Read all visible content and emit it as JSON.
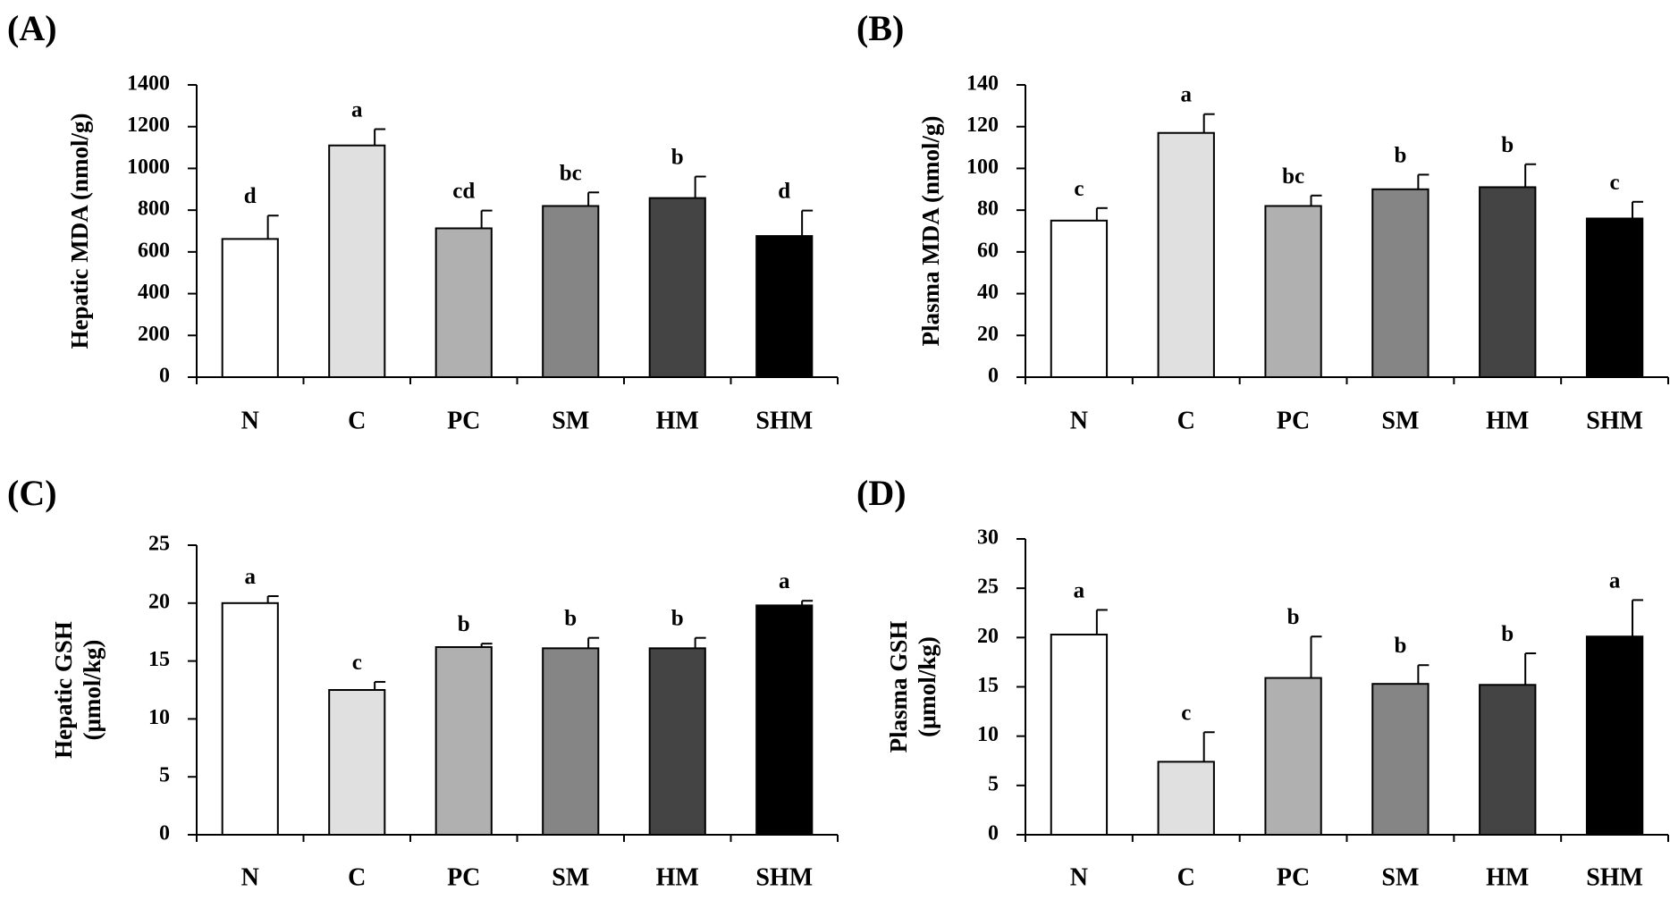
{
  "chart_data": [
    {
      "type": "bar",
      "panel": "(A)",
      "ylabel": "Hepatic MDA (nmol/g)",
      "ylabel_lines": [
        "Hepatic MDA (nmol/g)"
      ],
      "ylim": [
        0,
        1400
      ],
      "yticks": [
        "0",
        "200",
        "400",
        "600",
        "800",
        "1000",
        "1200",
        "1400"
      ],
      "categories": [
        "N",
        "C",
        "PC",
        "SM",
        "HM",
        "SHM"
      ],
      "values": [
        662,
        1110,
        713,
        820,
        858,
        676
      ],
      "errors": [
        112,
        78,
        85,
        65,
        103,
        122
      ],
      "significance": [
        "d",
        "a",
        "cd",
        "bc",
        "b",
        "d"
      ]
    },
    {
      "type": "bar",
      "panel": "(B)",
      "ylabel": "Plasma MDA (nmol/g)",
      "ylabel_lines": [
        "Plasma MDA (nmol/g)"
      ],
      "ylim": [
        0,
        140
      ],
      "yticks": [
        "0",
        "20",
        "40",
        "60",
        "80",
        "100",
        "120",
        "140"
      ],
      "categories": [
        "N",
        "C",
        "PC",
        "SM",
        "HM",
        "SHM"
      ],
      "values": [
        75,
        117,
        82,
        90,
        91,
        76
      ],
      "errors": [
        6,
        9,
        5,
        7,
        11,
        8
      ],
      "significance": [
        "c",
        "a",
        "bc",
        "b",
        "b",
        "c"
      ]
    },
    {
      "type": "bar",
      "panel": "(C)",
      "ylabel": "Hepatic GSH (μmol/kg)",
      "ylabel_lines": [
        "Hepatic GSH",
        "(μmol/kg)"
      ],
      "ylim": [
        0,
        25
      ],
      "yticks": [
        "0",
        "5",
        "10",
        "15",
        "20",
        "25"
      ],
      "categories": [
        "N",
        "C",
        "PC",
        "SM",
        "HM",
        "SHM"
      ],
      "values": [
        20.0,
        12.5,
        16.2,
        16.1,
        16.1,
        19.8
      ],
      "errors": [
        0.6,
        0.7,
        0.3,
        0.9,
        0.9,
        0.4
      ],
      "significance": [
        "a",
        "c",
        "b",
        "b",
        "b",
        "a"
      ]
    },
    {
      "type": "bar",
      "panel": "(D)",
      "ylabel": "Plasma GSH (μmol/kg)",
      "ylabel_lines": [
        "Plasma GSH",
        "(μmol/kg)"
      ],
      "ylim": [
        0,
        30
      ],
      "yticks": [
        "0",
        "5",
        "10",
        "15",
        "20",
        "25",
        "30"
      ],
      "categories": [
        "N",
        "C",
        "PC",
        "SM",
        "HM",
        "SHM"
      ],
      "values": [
        20.3,
        7.4,
        15.9,
        15.3,
        15.2,
        20.1
      ],
      "errors": [
        2.5,
        3.0,
        4.2,
        1.9,
        3.2,
        3.7
      ],
      "significance": [
        "a",
        "c",
        "b",
        "b",
        "b",
        "a"
      ]
    }
  ],
  "colors": {
    "bar_fills": [
      "#ffffff",
      "#e0e0e0",
      "#b0b0b0",
      "#858585",
      "#444444",
      "#000000"
    ],
    "stroke": "#000000"
  }
}
